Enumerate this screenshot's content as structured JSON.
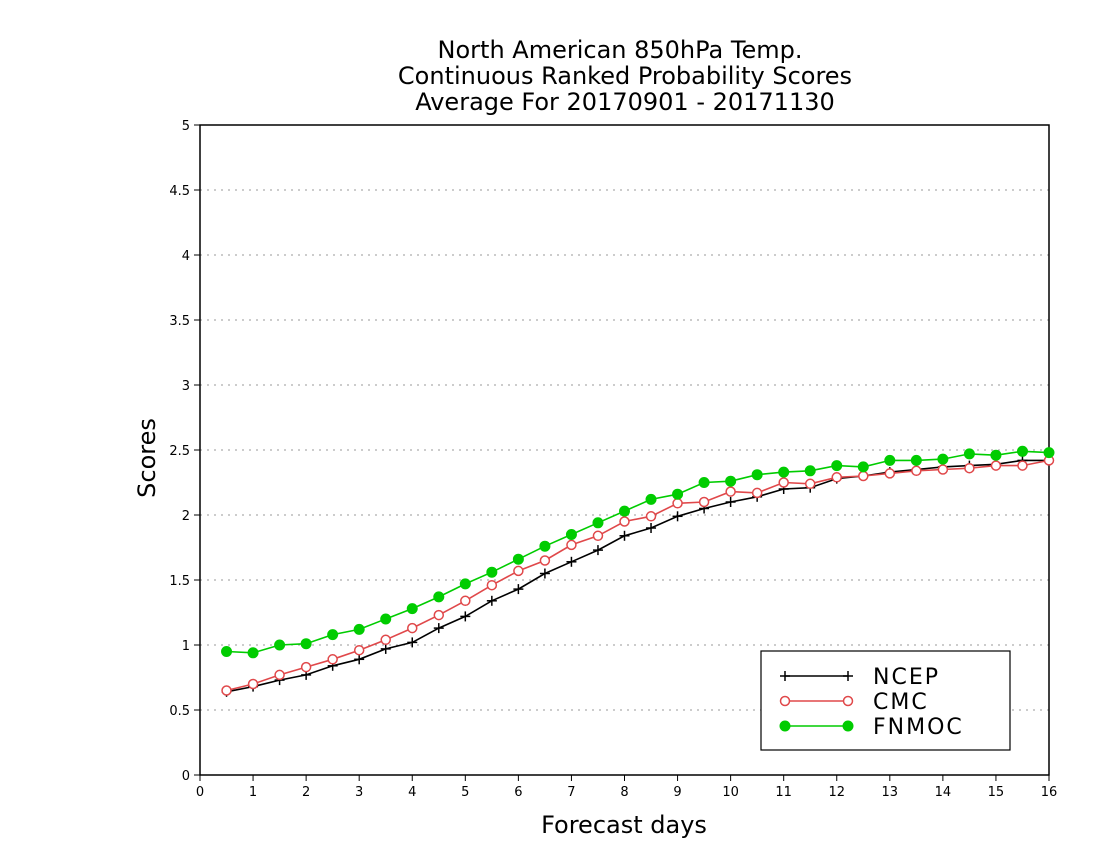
{
  "chart_data": {
    "type": "line",
    "title": [
      "North American 850hPa Temp.",
      "Continuous Ranked Probability Scores",
      "Average For 20170901 - 20171130"
    ],
    "xlabel": "Forecast days",
    "ylabel": "Scores",
    "xlim": [
      0,
      16
    ],
    "ylim": [
      0,
      5
    ],
    "xticks": [
      "0",
      "1",
      "2",
      "3",
      "4",
      "5",
      "6",
      "7",
      "8",
      "9",
      "10",
      "11",
      "12",
      "13",
      "14",
      "15",
      "16"
    ],
    "yticks": [
      "0",
      "0.5",
      "1",
      "1.5",
      "2",
      "2.5",
      "3",
      "3.5",
      "4",
      "4.5",
      "5"
    ],
    "grid": "horizontal dotted",
    "legend_position": "bottom-right",
    "x": [
      0.5,
      1,
      1.5,
      2,
      2.5,
      3,
      3.5,
      4,
      4.5,
      5,
      5.5,
      6,
      6.5,
      7,
      7.5,
      8,
      8.5,
      9,
      9.5,
      10,
      10.5,
      11,
      11.5,
      12,
      12.5,
      13,
      13.5,
      14,
      14.5,
      15,
      15.5,
      16
    ],
    "series": [
      {
        "name": "NCEP",
        "color": "#000000",
        "marker": "plus",
        "values": [
          0.64,
          0.68,
          0.73,
          0.77,
          0.84,
          0.89,
          0.97,
          1.02,
          1.13,
          1.22,
          1.34,
          1.43,
          1.55,
          1.64,
          1.73,
          1.84,
          1.9,
          1.99,
          2.05,
          2.1,
          2.14,
          2.2,
          2.21,
          2.28,
          2.3,
          2.33,
          2.35,
          2.37,
          2.38,
          2.39,
          2.42,
          2.42
        ]
      },
      {
        "name": "CMC",
        "color": "#e0484a",
        "marker": "open-circle",
        "values": [
          0.65,
          0.7,
          0.77,
          0.83,
          0.89,
          0.96,
          1.04,
          1.13,
          1.23,
          1.34,
          1.46,
          1.57,
          1.65,
          1.77,
          1.84,
          1.95,
          1.99,
          2.09,
          2.1,
          2.18,
          2.17,
          2.25,
          2.24,
          2.29,
          2.3,
          2.32,
          2.34,
          2.35,
          2.36,
          2.38,
          2.38,
          2.42
        ]
      },
      {
        "name": "FNMOC",
        "color": "#00cc00",
        "marker": "filled-circle",
        "values": [
          0.95,
          0.94,
          1.0,
          1.01,
          1.08,
          1.12,
          1.2,
          1.28,
          1.37,
          1.47,
          1.56,
          1.66,
          1.76,
          1.85,
          1.94,
          2.03,
          2.12,
          2.16,
          2.25,
          2.26,
          2.31,
          2.33,
          2.34,
          2.38,
          2.37,
          2.42,
          2.42,
          2.43,
          2.47,
          2.46,
          2.49,
          2.48
        ]
      }
    ]
  }
}
